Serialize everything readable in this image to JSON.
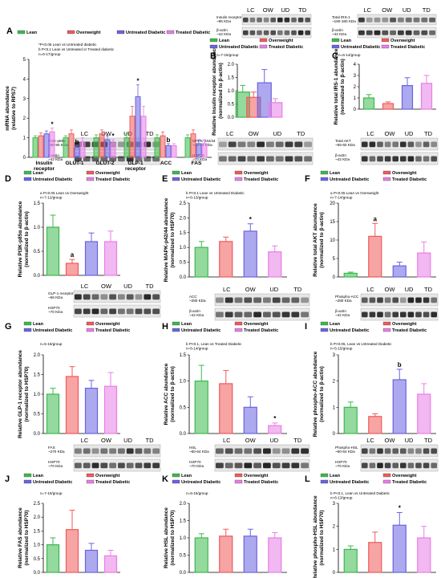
{
  "colors": {
    "lean": "#3cb94d",
    "overweight": "#f05a5a",
    "untreated": "#6a63e0",
    "treated": "#e87ee6"
  },
  "lanes": [
    "LC",
    "OW",
    "UD",
    "TD"
  ],
  "chart_data": [
    {
      "id": "A",
      "type": "bar",
      "letter": "A",
      "ylabel": "mRNA abundance (relative to RPS7)",
      "ylim": [
        0,
        5
      ],
      "yticks": [
        0,
        1,
        2,
        3,
        4,
        5
      ],
      "categories": [
        "Insulin receptor",
        "GLUT-1",
        "GLUT-2",
        "GLP-1 receptor",
        "ACC",
        "FAS"
      ],
      "legend": [
        "Lean",
        "Overweight",
        "Untreated Diabetic",
        "Treated Diabetic"
      ],
      "notes": [
        "*P<0.05 Lean vs Untreated diabetic",
        "b P<0.1 Lean vs Untreated or Treated diabetic",
        "n=6-17/group"
      ],
      "series": [
        {
          "name": "Lean",
          "values": [
            1.0,
            1.0,
            1.0,
            1.0,
            1.0,
            1.0
          ],
          "errors": [
            0.1,
            0.1,
            0.15,
            0.2,
            0.15,
            0.15
          ]
        },
        {
          "name": "Overweight",
          "values": [
            1.1,
            1.2,
            1.2,
            2.1,
            1.1,
            1.2
          ],
          "errors": [
            0.15,
            0.2,
            0.2,
            0.5,
            0.2,
            0.2
          ]
        },
        {
          "name": "Untreated Diabetic",
          "values": [
            1.2,
            0.5,
            0.9,
            3.1,
            0.6,
            0.7
          ],
          "errors": [
            0.15,
            0.1,
            0.2,
            0.6,
            0.1,
            0.2
          ]
        },
        {
          "name": "Treated Diabetic",
          "values": [
            1.3,
            0.8,
            0.7,
            2.1,
            0.6,
            0.7
          ],
          "errors": [
            0.2,
            0.2,
            0.2,
            0.5,
            0.1,
            0.2
          ]
        }
      ],
      "annotations": [
        {
          "category": 0,
          "series": 3,
          "text": "*"
        },
        {
          "category": 1,
          "series": 2,
          "text": "b"
        },
        {
          "category": 2,
          "series": 3,
          "text": "*"
        },
        {
          "category": 3,
          "series": 2,
          "text": "*"
        },
        {
          "category": 4,
          "series": 2,
          "text": "b"
        }
      ]
    },
    {
      "id": "B",
      "type": "bar",
      "letter": "B",
      "ylabel": "Relative Insulin receptor abundance (normalized to β-actin)",
      "ylim": [
        0,
        2.0
      ],
      "yticks": [
        0.0,
        0.5,
        1.0,
        1.5,
        2.0
      ],
      "categories": [
        "Lean",
        "Overweight",
        "Untreated Diabetic",
        "Treated Diabetic"
      ],
      "legend": [
        "Lean",
        "Overweight",
        "Untreated Diabetic",
        "Treated Diabetic"
      ],
      "notes": [
        "n=7-15/group"
      ],
      "values": [
        0.95,
        0.75,
        1.3,
        0.55
      ],
      "errors": [
        0.25,
        0.2,
        0.5,
        0.15
      ],
      "annotations": []
    },
    {
      "id": "C",
      "type": "bar",
      "letter": "C",
      "ylabel": "Relative total IRS-1 abundance (normalized to β-actin)",
      "ylim": [
        0,
        4
      ],
      "yticks": [
        0,
        1,
        2,
        3,
        4
      ],
      "categories": [
        "Lean",
        "Overweight",
        "Untreated Diabetic",
        "Treated Diabetic"
      ],
      "legend": [
        "Lean",
        "Overweight",
        "Untreated Diabetic",
        "Treated Diabetic"
      ],
      "notes": [
        "n=6-14/group"
      ],
      "values": [
        1.0,
        0.5,
        2.1,
        2.3
      ],
      "errors": [
        0.3,
        0.15,
        0.7,
        0.7
      ],
      "annotations": []
    },
    {
      "id": "D",
      "type": "bar",
      "letter": "D",
      "ylabel": "Relative PI3K-p85α abundance (normalized to β-actin)",
      "ylim": [
        0,
        1.5
      ],
      "yticks": [
        0.0,
        0.5,
        1.0,
        1.5
      ],
      "categories": [
        "Lean",
        "Overweight",
        "Untreated Diabetic",
        "Treated Diabetic"
      ],
      "legend": [
        "Lean",
        "Overweight",
        "Untreated Diabetic",
        "Treated Diabetic"
      ],
      "notes": [
        "a P<0.05 Lean vs Overweight",
        "n=7-12/group"
      ],
      "values": [
        1.0,
        0.25,
        0.7,
        0.7
      ],
      "errors": [
        0.25,
        0.08,
        0.18,
        0.22
      ],
      "annotations": [
        {
          "category": 1,
          "text": "a"
        }
      ]
    },
    {
      "id": "E",
      "type": "bar",
      "letter": "E",
      "ylabel": "Relative MAPK-p42/44 abundance (normalized to HSP70)",
      "ylim": [
        0,
        2.5
      ],
      "yticks": [
        0.0,
        0.5,
        1.0,
        1.5,
        2.0,
        2.5
      ],
      "categories": [
        "Lean",
        "Overweight",
        "Untreated Diabetic",
        "Treated Diabetic"
      ],
      "legend": [
        "Lean",
        "Overweight",
        "Untreated Diabetic",
        "Treated Diabetic"
      ],
      "notes": [
        "b P<0.1 Lean vs Untreated Diabetic",
        "n=6-13/group"
      ],
      "values": [
        1.0,
        1.2,
        1.55,
        0.85
      ],
      "errors": [
        0.2,
        0.15,
        0.25,
        0.2
      ],
      "annotations": [
        {
          "category": 2,
          "text": "*"
        }
      ]
    },
    {
      "id": "F",
      "type": "bar",
      "letter": "F",
      "ylabel": "Relative total AKT abundance (normalized to β-actin)",
      "ylim": [
        0,
        20
      ],
      "yticks": [
        0,
        5,
        10,
        15,
        20
      ],
      "categories": [
        "Lean",
        "Overweight",
        "Untreated Diabetic",
        "Treated Diabetic"
      ],
      "legend": [
        "Lean",
        "Overweight",
        "Untreated Diabetic",
        "Treated Diabetic"
      ],
      "notes": [
        "a P<0.05 Lean vs Overweight",
        "n=7-14/group"
      ],
      "values": [
        1.0,
        11.0,
        3.0,
        6.5
      ],
      "errors": [
        0.3,
        3.5,
        1.0,
        3.0
      ],
      "annotations": [
        {
          "category": 1,
          "text": "a"
        }
      ]
    },
    {
      "id": "G",
      "type": "bar",
      "letter": "G",
      "ylabel": "Relative GLP-1 receptor abundance (normalized to HSP70)",
      "ylim": [
        0,
        2.0
      ],
      "yticks": [
        0.0,
        0.5,
        1.0,
        1.5,
        2.0
      ],
      "categories": [
        "Lean",
        "Overweight",
        "Untreated Diabetic",
        "Treated Diabetic"
      ],
      "legend": [
        "Lean",
        "Overweight",
        "Untreated Diabetic",
        "Treated Diabetic"
      ],
      "notes": [
        "n=5-15/group"
      ],
      "values": [
        1.0,
        1.45,
        1.15,
        1.2
      ],
      "errors": [
        0.15,
        0.25,
        0.2,
        0.35
      ],
      "annotations": []
    },
    {
      "id": "H",
      "type": "bar",
      "letter": "H",
      "ylabel": "Relative ACC abundance (normalized to β-actin)",
      "ylim": [
        0,
        1.5
      ],
      "yticks": [
        0.0,
        0.5,
        1.0,
        1.5
      ],
      "categories": [
        "Lean",
        "Overweight",
        "Untreated Diabetic",
        "Treated Diabetic"
      ],
      "legend": [
        "Lean",
        "Overweight",
        "Untreated Diabetic",
        "Treated Diabetic"
      ],
      "notes": [
        "b P<0.1, Lean vs Treated Diabetic",
        "n=6-14/group"
      ],
      "values": [
        1.0,
        0.95,
        0.5,
        0.15
      ],
      "errors": [
        0.3,
        0.25,
        0.2,
        0.05
      ],
      "annotations": [
        {
          "category": 3,
          "text": "*"
        }
      ]
    },
    {
      "id": "I",
      "type": "bar",
      "letter": "I",
      "ylabel": "Relative phospho-ACC abundance (normalized to β-actin)",
      "ylim": [
        0,
        3
      ],
      "yticks": [
        0,
        1,
        2,
        3
      ],
      "categories": [
        "Lean",
        "Overweight",
        "Untreated Diabetic",
        "Treated Diabetic"
      ],
      "legend": [
        "Lean",
        "Overweight",
        "Untreated Diabetic",
        "Treated Diabetic"
      ],
      "notes": [
        "b P<0.05, Lean vs Untreated Diabetic",
        "n=5-15/group"
      ],
      "values": [
        1.0,
        0.65,
        2.05,
        1.5
      ],
      "errors": [
        0.2,
        0.1,
        0.4,
        0.4
      ],
      "annotations": [
        {
          "category": 2,
          "text": "b"
        }
      ]
    },
    {
      "id": "J",
      "type": "bar",
      "letter": "J",
      "ylabel": "Relative FAS abundance (normalized to HSP70)",
      "ylim": [
        0,
        2.5
      ],
      "yticks": [
        0.0,
        0.5,
        1.0,
        1.5,
        2.0,
        2.5
      ],
      "categories": [
        "Lean",
        "Overweight",
        "Untreated Diabetic",
        "Treated Diabetic"
      ],
      "legend": [
        "Lean",
        "Overweight",
        "Untreated Diabetic",
        "Treated Diabetic"
      ],
      "notes": [
        "n=7-15/group"
      ],
      "values": [
        1.0,
        1.55,
        0.8,
        0.6
      ],
      "errors": [
        0.25,
        0.7,
        0.25,
        0.2
      ],
      "annotations": []
    },
    {
      "id": "K",
      "type": "bar",
      "letter": "K",
      "ylabel": "Relative HSL abundance (normalized to HSP70)",
      "ylim": [
        0,
        2.0
      ],
      "yticks": [
        0.0,
        0.5,
        1.0,
        1.5,
        2.0
      ],
      "categories": [
        "Lean",
        "Overweight",
        "Untreated Diabetic",
        "Treated Diabetic"
      ],
      "legend": [
        "Lean",
        "Overweight",
        "Untreated Diabetic",
        "Treated Diabetic"
      ],
      "notes": [
        "n=6-15/group"
      ],
      "values": [
        1.0,
        1.05,
        1.05,
        1.0
      ],
      "errors": [
        0.12,
        0.2,
        0.2,
        0.15
      ],
      "annotations": []
    },
    {
      "id": "L",
      "type": "bar",
      "letter": "L",
      "ylabel": "Relative phospho-HSL abundance (normalized to HSP70)",
      "ylim": [
        0,
        3
      ],
      "yticks": [
        0,
        1,
        2,
        3
      ],
      "categories": [
        "Lean",
        "Overweight",
        "Untreated Diabetic",
        "Treated Diabetic"
      ],
      "legend": [
        "Lean",
        "Overweight",
        "Untreated Diabetic",
        "Treated Diabetic"
      ],
      "notes": [
        "b P<0.1, Lean vs Untreated Diabetic",
        "n=6-13/group"
      ],
      "values": [
        1.0,
        1.3,
        2.05,
        1.5
      ],
      "errors": [
        0.15,
        0.45,
        0.55,
        0.5
      ],
      "annotations": [
        {
          "category": 2,
          "text": "*"
        }
      ]
    }
  ],
  "blots": [
    {
      "id": "blot-insulin-receptor",
      "top_label": "Insulin receptor ~95 KDa",
      "bottom_label": "β-actin ~42 KDa",
      "lanes": true
    },
    {
      "id": "blot-irs1",
      "top_label": "Total IRS-1 ~160-180 KDa",
      "bottom_label": "β-actin ~42 KDa",
      "lanes": true
    },
    {
      "id": "blot-pi3k",
      "top_label": "PI3K-p85α ~80-90 KDa",
      "bottom_label": "β-actin ~42 KDa",
      "lanes": true
    },
    {
      "id": "blot-mapk",
      "top_label": "MAPK-p42/44 ~42-44 KDa",
      "bottom_label": "HSP70 ~70 KDa",
      "lanes": true
    },
    {
      "id": "blot-akt",
      "top_label": "Total AKT ~55-60 KDa",
      "bottom_label": "β-actin ~42 KDa",
      "lanes": true
    },
    {
      "id": "blot-glp1",
      "top_label": "GLP-1 receptor ~56 KDa",
      "bottom_label": "HSP70 ~70 KDa",
      "lanes": true
    },
    {
      "id": "blot-acc",
      "top_label": "ACC ~280 KDa",
      "bottom_label": "β-actin ~42 KDa",
      "lanes": true
    },
    {
      "id": "blot-pacc",
      "top_label": "Phospho-ACC ~280 KDa",
      "bottom_label": "β-actin ~42 KDa",
      "lanes": true
    },
    {
      "id": "blot-fas",
      "top_label": "FAS ~270 KDa",
      "bottom_label": "HSP70 ~70 KDa",
      "lanes": true
    },
    {
      "id": "blot-hsl",
      "top_label": "HSL ~60-64 KDa",
      "bottom_label": "HSP70 ~70 KDa",
      "lanes": true
    },
    {
      "id": "blot-phsl",
      "top_label": "Phospho-HSL ~60-64 KDa",
      "bottom_label": "HSP70 ~70 KDa",
      "lanes": true
    }
  ]
}
